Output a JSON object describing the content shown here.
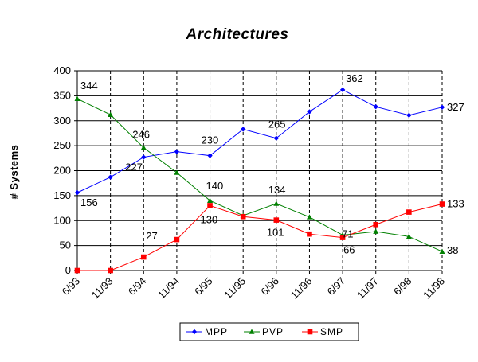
{
  "chart_data": {
    "type": "line",
    "title": "Architectures",
    "xlabel": "",
    "ylabel": "# Systems",
    "categories": [
      "6/93",
      "11/93",
      "6/94",
      "11/94",
      "6/95",
      "11/95",
      "6/96",
      "11/96",
      "6/97",
      "11/97",
      "6/98",
      "11/98"
    ],
    "ylim": [
      0,
      400
    ],
    "yticks": [
      "0",
      "50",
      "100",
      "150",
      "200",
      "250",
      "300",
      "350",
      "400"
    ],
    "grid": true,
    "legend_position": "bottom-center",
    "series": [
      {
        "name": "MPP",
        "color": "#0000ff",
        "marker": "diamond",
        "values": [
          156,
          187,
          227,
          238,
          230,
          283,
          265,
          318,
          362,
          328,
          311,
          327
        ]
      },
      {
        "name": "PVP",
        "color": "#008000",
        "marker": "triangle",
        "values": [
          344,
          312,
          246,
          196,
          140,
          110,
          134,
          107,
          71,
          78,
          68,
          38
        ]
      },
      {
        "name": "SMP",
        "color": "#ff0000",
        "marker": "square",
        "values": [
          0,
          0,
          27,
          62,
          130,
          108,
          101,
          73,
          66,
          92,
          117,
          133
        ]
      }
    ],
    "data_labels": [
      {
        "series": "PVP",
        "index": 0,
        "text": "344"
      },
      {
        "series": "MPP",
        "index": 0,
        "text": "156"
      },
      {
        "series": "PVP",
        "index": 2,
        "text": "246"
      },
      {
        "series": "MPP",
        "index": 2,
        "text": "227"
      },
      {
        "series": "SMP",
        "index": 2,
        "text": "27"
      },
      {
        "series": "MPP",
        "index": 4,
        "text": "230"
      },
      {
        "series": "PVP",
        "index": 4,
        "text": "140"
      },
      {
        "series": "SMP",
        "index": 4,
        "text": "130"
      },
      {
        "series": "MPP",
        "index": 6,
        "text": "265"
      },
      {
        "series": "PVP",
        "index": 6,
        "text": "134"
      },
      {
        "series": "SMP",
        "index": 6,
        "text": "101"
      },
      {
        "series": "MPP",
        "index": 8,
        "text": "362"
      },
      {
        "series": "PVP",
        "index": 8,
        "text": "71"
      },
      {
        "series": "SMP",
        "index": 8,
        "text": "66"
      },
      {
        "series": "MPP",
        "index": 11,
        "text": "327"
      },
      {
        "series": "SMP",
        "index": 11,
        "text": "133"
      },
      {
        "series": "PVP",
        "index": 11,
        "text": "38"
      }
    ]
  }
}
